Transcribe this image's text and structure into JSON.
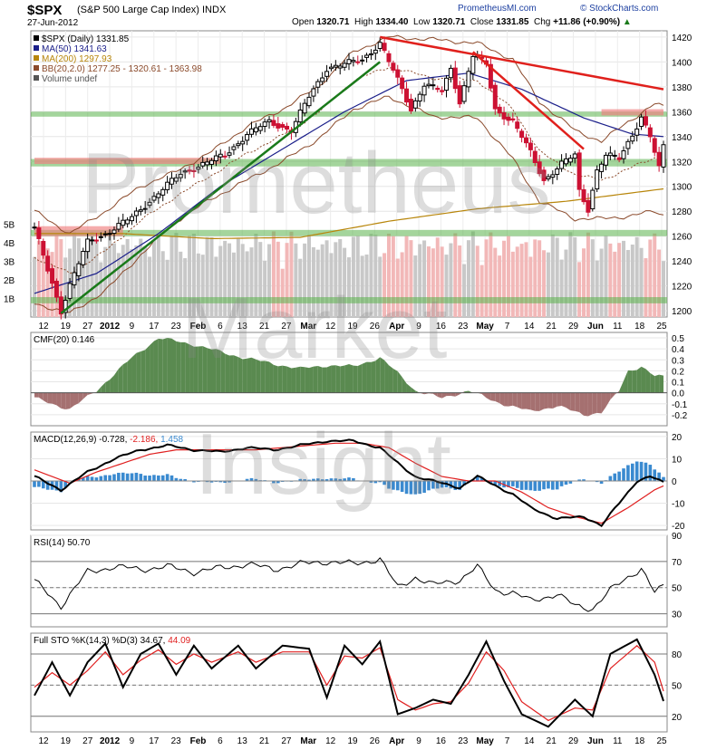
{
  "header": {
    "symbol": "$SPX",
    "description": "(S&P 500 Large Cap Index)  INDX",
    "date": "27-Jun-2012",
    "ohlc": {
      "open_label": "Open",
      "open": "1320.71",
      "high_label": "High",
      "high": "1334.40",
      "low_label": "Low",
      "low": "1320.71",
      "close_label": "Close",
      "close": "1331.85",
      "chg_label": "Chg",
      "chg": "+11.86 (+0.90%)"
    },
    "site": "PrometheusMI.com",
    "source": "© StockCharts.com",
    "arrow": "▲"
  },
  "watermark": [
    "Prometheus",
    "Market",
    "Insight"
  ],
  "colors": {
    "up": "#000000",
    "down": "#cc1133",
    "ma50": "#1b1f8a",
    "ma200": "#b8860b",
    "bb": "#8b4a2b",
    "trend_green": "#1a7a1a",
    "trend_red": "#e0201c",
    "support_green": "#59b34a",
    "resist_red": "#f08080",
    "cmf_pos": "#5a8a50",
    "cmf_neg": "#a57070",
    "macd_hist": "#3a8ad0"
  },
  "chart_data": [
    {
      "type": "line",
      "name": "price",
      "legend": [
        {
          "label": "$SPX (Daily) 1331.85",
          "color": "#000000"
        },
        {
          "label": "MA(50) 1341.63",
          "color": "#1b1f8a"
        },
        {
          "label": "MA(200) 1297.93",
          "color": "#b8860b"
        },
        {
          "label": "BB(20,2.0) 1277.25 - 1320.61 - 1363.98",
          "color": "#8b4a2b"
        },
        {
          "label": "Volume undef",
          "color": "#555555"
        }
      ],
      "ylim": [
        1195,
        1425
      ],
      "y_ticks": [
        1200,
        1220,
        1240,
        1260,
        1280,
        1300,
        1320,
        1340,
        1360,
        1380,
        1400,
        1420
      ],
      "volume_ticks": [
        "1B",
        "2B",
        "3B",
        "4B",
        "5B"
      ],
      "x_ticks": [
        "12",
        "19",
        "27",
        "2012",
        "9",
        "17",
        "23",
        "Feb",
        "6",
        "13",
        "21",
        "27",
        "Mar",
        "12",
        "19",
        "26",
        "Apr",
        "9",
        "16",
        "23",
        "May",
        "7",
        "14",
        "21",
        "29",
        "Jun",
        "11",
        "18",
        "25"
      ],
      "close_anchors": [
        [
          0,
          1266
        ],
        [
          6,
          1200
        ],
        [
          8,
          1221
        ],
        [
          12,
          1255
        ],
        [
          16,
          1262
        ],
        [
          22,
          1275
        ],
        [
          28,
          1295
        ],
        [
          33,
          1310
        ],
        [
          38,
          1318
        ],
        [
          43,
          1325
        ],
        [
          48,
          1342
        ],
        [
          53,
          1352
        ],
        [
          58,
          1345
        ],
        [
          62,
          1372
        ],
        [
          66,
          1395
        ],
        [
          70,
          1398
        ],
        [
          74,
          1402
        ],
        [
          78,
          1415
        ],
        [
          80,
          1400
        ],
        [
          83,
          1378
        ],
        [
          85,
          1362
        ],
        [
          88,
          1382
        ],
        [
          92,
          1376
        ],
        [
          94,
          1395
        ],
        [
          96,
          1368
        ],
        [
          99,
          1405
        ],
        [
          102,
          1398
        ],
        [
          104,
          1362
        ],
        [
          108,
          1352
        ],
        [
          112,
          1327
        ],
        [
          115,
          1305
        ],
        [
          119,
          1318
        ],
        [
          122,
          1325
        ],
        [
          123,
          1296
        ],
        [
          125,
          1282
        ],
        [
          127,
          1313
        ],
        [
          129,
          1325
        ],
        [
          132,
          1322
        ],
        [
          135,
          1342
        ],
        [
          137,
          1356
        ],
        [
          139,
          1340
        ],
        [
          141,
          1314
        ],
        [
          142,
          1331.85
        ]
      ],
      "ma50_anchors": [
        [
          0,
          1214
        ],
        [
          14,
          1230
        ],
        [
          28,
          1262
        ],
        [
          42,
          1300
        ],
        [
          56,
          1330
        ],
        [
          70,
          1360
        ],
        [
          84,
          1385
        ],
        [
          98,
          1391
        ],
        [
          110,
          1378
        ],
        [
          124,
          1355
        ],
        [
          135,
          1342
        ],
        [
          142,
          1340
        ]
      ],
      "ma200_anchors": [
        [
          0,
          1262
        ],
        [
          20,
          1262
        ],
        [
          40,
          1258
        ],
        [
          60,
          1259
        ],
        [
          80,
          1272
        ],
        [
          100,
          1282
        ],
        [
          120,
          1288
        ],
        [
          142,
          1298
        ]
      ],
      "bb_upper_anchors": [
        [
          0,
          1280
        ],
        [
          8,
          1262
        ],
        [
          16,
          1280
        ],
        [
          24,
          1300
        ],
        [
          32,
          1312
        ],
        [
          40,
          1328
        ],
        [
          48,
          1348
        ],
        [
          56,
          1362
        ],
        [
          64,
          1380
        ],
        [
          72,
          1408
        ],
        [
          80,
          1420
        ],
        [
          90,
          1418
        ],
        [
          100,
          1415
        ],
        [
          108,
          1402
        ],
        [
          114,
          1368
        ],
        [
          122,
          1345
        ],
        [
          128,
          1336
        ],
        [
          134,
          1352
        ],
        [
          140,
          1366
        ],
        [
          142,
          1364
        ]
      ],
      "bb_lower_anchors": [
        [
          0,
          1206
        ],
        [
          8,
          1198
        ],
        [
          16,
          1216
        ],
        [
          24,
          1245
        ],
        [
          32,
          1272
        ],
        [
          40,
          1290
        ],
        [
          48,
          1305
        ],
        [
          56,
          1320
        ],
        [
          64,
          1338
        ],
        [
          72,
          1362
        ],
        [
          80,
          1372
        ],
        [
          90,
          1356
        ],
        [
          100,
          1355
        ],
        [
          108,
          1322
        ],
        [
          114,
          1288
        ],
        [
          122,
          1274
        ],
        [
          128,
          1274
        ],
        [
          134,
          1276
        ],
        [
          140,
          1280
        ],
        [
          142,
          1277
        ]
      ],
      "trendlines": [
        {
          "color": "green",
          "points": [
            [
              6,
              1198
            ],
            [
              78,
              1400
            ]
          ]
        },
        {
          "color": "red",
          "points": [
            [
              78,
              1420
            ],
            [
              142,
              1378
            ]
          ]
        },
        {
          "color": "red",
          "points": [
            [
              99,
              1408
            ],
            [
              124,
              1330
            ]
          ]
        }
      ],
      "support_bands": [
        {
          "color": "green",
          "y": [
            1316,
            1322
          ]
        },
        {
          "color": "green",
          "y": [
            1356,
            1360
          ]
        },
        {
          "color": "green",
          "y": [
            1260,
            1265
          ]
        },
        {
          "color": "green",
          "y": [
            1206,
            1211
          ]
        }
      ],
      "resistance_bands": [
        {
          "color": "red",
          "y": [
            1318,
            1323
          ],
          "x_range": [
            0,
            42
          ]
        },
        {
          "color": "red",
          "y": [
            1357,
            1362
          ],
          "x_range": [
            128,
            142
          ]
        },
        {
          "color": "red",
          "y": [
            1260,
            1268
          ],
          "x_range": [
            0,
            20
          ]
        }
      ]
    },
    {
      "type": "area",
      "name": "CMF",
      "label": "CMF(20) 0.146",
      "ylim": [
        -0.3,
        0.55
      ],
      "y_ticks": [
        "0.5",
        "0.4",
        "0.3",
        "0.2",
        "0.1",
        "0.0",
        "-0.1",
        "-0.2"
      ],
      "anchors": [
        [
          0,
          -0.05
        ],
        [
          8,
          -0.15
        ],
        [
          14,
          0.02
        ],
        [
          22,
          0.32
        ],
        [
          28,
          0.5
        ],
        [
          36,
          0.44
        ],
        [
          44,
          0.35
        ],
        [
          52,
          0.28
        ],
        [
          60,
          0.22
        ],
        [
          66,
          0.25
        ],
        [
          72,
          0.24
        ],
        [
          78,
          0.32
        ],
        [
          82,
          0.18
        ],
        [
          86,
          0.02
        ],
        [
          92,
          -0.05
        ],
        [
          98,
          0.02
        ],
        [
          104,
          -0.08
        ],
        [
          112,
          -0.17
        ],
        [
          118,
          -0.12
        ],
        [
          124,
          -0.2
        ],
        [
          128,
          -0.18
        ],
        [
          132,
          0.02
        ],
        [
          134,
          0.2
        ],
        [
          137,
          0.24
        ],
        [
          140,
          0.15
        ],
        [
          142,
          0.146
        ]
      ]
    },
    {
      "type": "line",
      "name": "MACD",
      "label_prefix": "MACD(12,26,9)",
      "values": {
        "macd": "-0.728",
        "signal": "-2.186",
        "hist": "1.458"
      },
      "ylim": [
        -22,
        22
      ],
      "y_ticks": [
        "20",
        "10",
        "0",
        "-10",
        "-20"
      ],
      "macd_anchors": [
        [
          0,
          2
        ],
        [
          6,
          -4
        ],
        [
          12,
          4
        ],
        [
          18,
          10
        ],
        [
          24,
          14
        ],
        [
          30,
          16
        ],
        [
          36,
          14
        ],
        [
          42,
          13
        ],
        [
          48,
          15
        ],
        [
          54,
          14
        ],
        [
          60,
          16
        ],
        [
          66,
          18
        ],
        [
          72,
          18
        ],
        [
          78,
          15
        ],
        [
          82,
          8
        ],
        [
          86,
          2
        ],
        [
          90,
          0
        ],
        [
          96,
          -3
        ],
        [
          100,
          2
        ],
        [
          104,
          -2
        ],
        [
          108,
          -6
        ],
        [
          112,
          -12
        ],
        [
          118,
          -17
        ],
        [
          124,
          -16
        ],
        [
          128,
          -20
        ],
        [
          132,
          -10
        ],
        [
          136,
          0
        ],
        [
          139,
          2
        ],
        [
          142,
          -0.728
        ]
      ],
      "signal_anchors": [
        [
          0,
          5
        ],
        [
          8,
          -1
        ],
        [
          14,
          4
        ],
        [
          20,
          8
        ],
        [
          26,
          12
        ],
        [
          32,
          14
        ],
        [
          38,
          14
        ],
        [
          44,
          14
        ],
        [
          50,
          14
        ],
        [
          56,
          15
        ],
        [
          62,
          16
        ],
        [
          68,
          17
        ],
        [
          74,
          17
        ],
        [
          80,
          15
        ],
        [
          86,
          8
        ],
        [
          92,
          2
        ],
        [
          98,
          0
        ],
        [
          104,
          0
        ],
        [
          110,
          -5
        ],
        [
          116,
          -12
        ],
        [
          122,
          -16
        ],
        [
          128,
          -19
        ],
        [
          134,
          -12
        ],
        [
          140,
          -4
        ],
        [
          142,
          -2.186
        ]
      ]
    },
    {
      "type": "line",
      "name": "RSI",
      "label": "RSI(14) 50.70",
      "ylim": [
        20,
        90
      ],
      "y_ticks": [
        "90",
        "70",
        "50",
        "30"
      ],
      "anchors": [
        [
          0,
          55
        ],
        [
          6,
          36
        ],
        [
          12,
          62
        ],
        [
          18,
          66
        ],
        [
          24,
          64
        ],
        [
          30,
          66
        ],
        [
          36,
          62
        ],
        [
          42,
          65
        ],
        [
          48,
          68
        ],
        [
          54,
          64
        ],
        [
          60,
          68
        ],
        [
          66,
          70
        ],
        [
          72,
          68
        ],
        [
          78,
          72
        ],
        [
          82,
          50
        ],
        [
          86,
          58
        ],
        [
          90,
          52
        ],
        [
          96,
          56
        ],
        [
          100,
          66
        ],
        [
          104,
          48
        ],
        [
          108,
          46
        ],
        [
          112,
          40
        ],
        [
          118,
          45
        ],
        [
          122,
          36
        ],
        [
          126,
          34
        ],
        [
          130,
          48
        ],
        [
          134,
          58
        ],
        [
          137,
          65
        ],
        [
          140,
          46
        ],
        [
          142,
          50.7
        ]
      ]
    },
    {
      "type": "line",
      "name": "FullSTO",
      "label_prefix": "Full STO %K(14,3) %D(3)",
      "values": {
        "k": "34.67",
        "d": "44.09"
      },
      "ylim": [
        5,
        100
      ],
      "y_ticks": [
        "80",
        "50",
        "20"
      ],
      "k_anchors": [
        [
          0,
          40
        ],
        [
          4,
          72
        ],
        [
          8,
          40
        ],
        [
          12,
          72
        ],
        [
          16,
          90
        ],
        [
          20,
          48
        ],
        [
          24,
          80
        ],
        [
          28,
          90
        ],
        [
          32,
          60
        ],
        [
          36,
          88
        ],
        [
          40,
          66
        ],
        [
          46,
          88
        ],
        [
          50,
          66
        ],
        [
          56,
          88
        ],
        [
          62,
          85
        ],
        [
          66,
          38
        ],
        [
          70,
          88
        ],
        [
          74,
          70
        ],
        [
          78,
          92
        ],
        [
          82,
          22
        ],
        [
          86,
          28
        ],
        [
          90,
          36
        ],
        [
          94,
          32
        ],
        [
          98,
          60
        ],
        [
          102,
          92
        ],
        [
          106,
          54
        ],
        [
          110,
          22
        ],
        [
          116,
          10
        ],
        [
          122,
          36
        ],
        [
          126,
          20
        ],
        [
          130,
          80
        ],
        [
          136,
          94
        ],
        [
          140,
          60
        ],
        [
          142,
          34.67
        ]
      ],
      "d_anchors": [
        [
          0,
          48
        ],
        [
          4,
          62
        ],
        [
          8,
          50
        ],
        [
          12,
          64
        ],
        [
          16,
          82
        ],
        [
          20,
          60
        ],
        [
          24,
          74
        ],
        [
          28,
          84
        ],
        [
          32,
          70
        ],
        [
          36,
          80
        ],
        [
          40,
          72
        ],
        [
          46,
          82
        ],
        [
          50,
          72
        ],
        [
          56,
          82
        ],
        [
          62,
          82
        ],
        [
          66,
          50
        ],
        [
          70,
          78
        ],
        [
          74,
          76
        ],
        [
          78,
          86
        ],
        [
          82,
          36
        ],
        [
          86,
          26
        ],
        [
          90,
          32
        ],
        [
          94,
          34
        ],
        [
          98,
          52
        ],
        [
          102,
          82
        ],
        [
          106,
          64
        ],
        [
          110,
          34
        ],
        [
          116,
          16
        ],
        [
          122,
          28
        ],
        [
          126,
          26
        ],
        [
          130,
          66
        ],
        [
          136,
          88
        ],
        [
          140,
          72
        ],
        [
          142,
          44.09
        ]
      ]
    }
  ]
}
